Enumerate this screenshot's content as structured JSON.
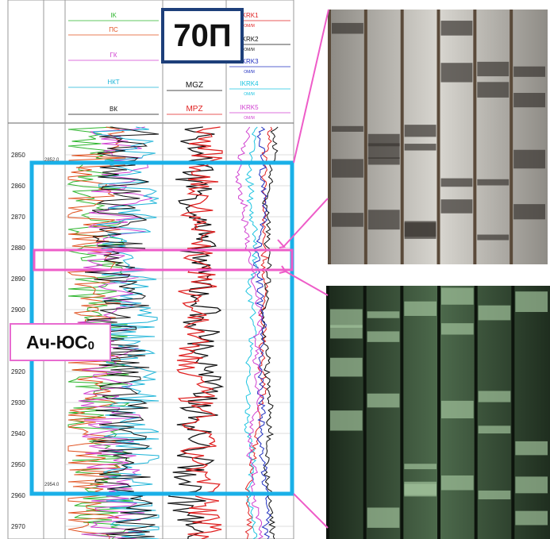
{
  "badge": "70П",
  "formation": {
    "name": "Ач-ЮС",
    "index": "0"
  },
  "log": {
    "depths": [
      "2850",
      "2860",
      "2870",
      "2880",
      "2890",
      "2900",
      "2910",
      "2920",
      "2930",
      "2940",
      "2950",
      "2960",
      "2970"
    ],
    "interval_marks": [
      "2852.0",
      "2954.0"
    ],
    "tracks": [
      {
        "curves": [
          {
            "name": "IK",
            "color": "#2db52d"
          },
          {
            "name": "ПС",
            "color": "#e0501e"
          },
          {
            "name": "ГК",
            "color": "#d040d0"
          },
          {
            "name": "НКТ",
            "color": "#1cb4d8"
          },
          {
            "name": "ВК",
            "color": "#111111"
          }
        ]
      },
      {
        "curves": [
          {
            "name": "MGZ",
            "color": "#111111"
          },
          {
            "name": "MPZ",
            "color": "#e02020"
          }
        ]
      },
      {
        "curves": [
          {
            "name": "IKRK1",
            "color": "#e02020"
          },
          {
            "name": "IKRK2",
            "color": "#111111"
          },
          {
            "name": "IKRK3",
            "color": "#2030c0"
          },
          {
            "name": "IKRK4",
            "color": "#1cc4e0"
          },
          {
            "name": "IKRK5",
            "color": "#d040d0"
          }
        ]
      }
    ],
    "unit": "ОМ/М"
  }
}
